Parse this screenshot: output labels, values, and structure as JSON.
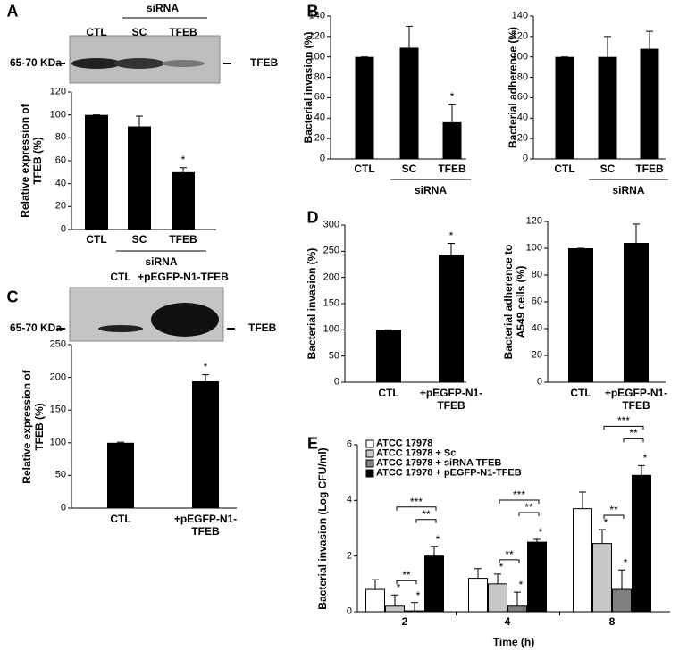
{
  "chart_data": [
    {
      "type": "bar",
      "panel": "A",
      "blot": {
        "lanes": [
          "CTL",
          "SC",
          "TFEB"
        ],
        "group": "siRNA",
        "marker": "65-70 KDa",
        "protein": "TFEB"
      },
      "y_label": "Relative expression of TFEB (%)",
      "categories": [
        "CTL",
        "SC",
        "TFEB"
      ],
      "values": [
        100,
        90,
        50
      ],
      "errors": [
        0,
        9,
        4
      ],
      "color": "#000000",
      "ylim": [
        0,
        120
      ],
      "yticks": [
        0,
        20,
        40,
        60,
        80,
        100,
        120
      ],
      "group": {
        "label": "siRNA",
        "categories": [
          "SC",
          "TFEB"
        ]
      },
      "annotations": [
        {
          "category": "TFEB",
          "text": "*"
        }
      ]
    },
    {
      "type": "bar",
      "panel": "B",
      "y_label": "Bacterial invasion (%)",
      "categories": [
        "CTL",
        "SC",
        "TFEB"
      ],
      "values": [
        100,
        109,
        36
      ],
      "errors": [
        0,
        21,
        17
      ],
      "color": "#000000",
      "ylim": [
        0,
        140
      ],
      "yticks": [
        0,
        20,
        40,
        60,
        80,
        100,
        120,
        140
      ],
      "group": {
        "label": "siRNA",
        "categories": [
          "SC",
          "TFEB"
        ]
      },
      "annotations": [
        {
          "category": "TFEB",
          "text": "*"
        }
      ]
    },
    {
      "type": "bar",
      "y_label": "Bacterial adherence (%)",
      "categories": [
        "CTL",
        "SC",
        "TFEB"
      ],
      "values": [
        100,
        100,
        108
      ],
      "errors": [
        0,
        20,
        17
      ],
      "color": "#000000",
      "ylim": [
        0,
        140
      ],
      "yticks": [
        0,
        20,
        40,
        60,
        80,
        100,
        120,
        140
      ],
      "group": {
        "label": "siRNA",
        "categories": [
          "SC",
          "TFEB"
        ]
      }
    },
    {
      "type": "bar",
      "panel": "C",
      "blot": {
        "lanes": [
          "CTL",
          "+pEGFP-N1-TFEB"
        ],
        "marker": "65-70 KDa",
        "protein": "TFEB"
      },
      "y_label": "Relative expression of TFEB (%)",
      "categories": [
        "CTL",
        "+pEGFP-N1-TFEB"
      ],
      "values": [
        100,
        194
      ],
      "errors": [
        1,
        10
      ],
      "color": "#000000",
      "ylim": [
        0,
        250
      ],
      "yticks": [
        0,
        50,
        100,
        150,
        200,
        250
      ],
      "annotations": [
        {
          "category": "+pEGFP-N1-TFEB",
          "text": "*"
        }
      ]
    },
    {
      "type": "bar",
      "panel": "D",
      "y_label": "Bacterial invasion (%)",
      "categories": [
        "CTL",
        "+pEGFP-N1-TFEB"
      ],
      "values": [
        100,
        243
      ],
      "errors": [
        0,
        22
      ],
      "color": "#000000",
      "ylim": [
        0,
        300
      ],
      "yticks": [
        0,
        50,
        100,
        150,
        200,
        250,
        300
      ],
      "annotations": [
        {
          "category": "+pEGFP-N1-TFEB",
          "text": "*"
        }
      ]
    },
    {
      "type": "bar",
      "y_label": "Bacterial adherence to A549 cells (%)",
      "categories": [
        "CTL",
        "+pEGFP-N1-TFEB"
      ],
      "values": [
        100,
        104
      ],
      "errors": [
        0,
        14
      ],
      "color": "#000000",
      "ylim": [
        0,
        120
      ],
      "yticks": [
        0,
        20,
        40,
        60,
        80,
        100,
        120
      ]
    },
    {
      "type": "grouped_bar",
      "panel": "E",
      "y_label": "Bacterial invasion (Log CFU/ml)",
      "x_label": "Time (h)",
      "categories": [
        "2",
        "4",
        "8"
      ],
      "series": [
        {
          "name": "ATCC 17978",
          "color": "#ffffff",
          "values": [
            0.8,
            1.2,
            3.7
          ],
          "errors": [
            0.35,
            0.35,
            0.6
          ]
        },
        {
          "name": "ATCC 17978 + Sc",
          "color": "#c8c8c8",
          "values": [
            0.2,
            1.0,
            2.45
          ],
          "errors": [
            0.4,
            0.35,
            0.5
          ]
        },
        {
          "name": "ATCC 17978 + siRNA TFEB",
          "color": "#7f7f7f",
          "values": [
            0.03,
            0.2,
            0.8
          ],
          "errors": [
            0.3,
            0.5,
            0.7
          ]
        },
        {
          "name": "ATCC 17978 + pEGFP-N1-TFEB",
          "color": "#000000",
          "values": [
            2.0,
            2.5,
            4.9
          ],
          "errors": [
            0.35,
            0.1,
            0.35
          ]
        }
      ],
      "ylim": [
        0,
        6
      ],
      "yticks": [
        0,
        2,
        4,
        6
      ],
      "stars": [
        {
          "series": "ATCC 17978 + Sc",
          "text": "*"
        },
        {
          "series": "ATCC 17978 + siRNA TFEB",
          "text": "*"
        },
        {
          "series": "ATCC 17978 + pEGFP-N1-TFEB",
          "text": "*"
        }
      ],
      "brackets": [
        {
          "from": "ATCC 17978 + Sc",
          "to": "ATCC 17978 + siRNA TFEB",
          "text": "**"
        },
        {
          "from": "ATCC 17978 + siRNA TFEB",
          "to": "ATCC 17978 + pEGFP-N1-TFEB",
          "text": "**"
        },
        {
          "from": "ATCC 17978 + Sc",
          "to": "ATCC 17978 + pEGFP-N1-TFEB",
          "text": "***"
        }
      ]
    }
  ]
}
